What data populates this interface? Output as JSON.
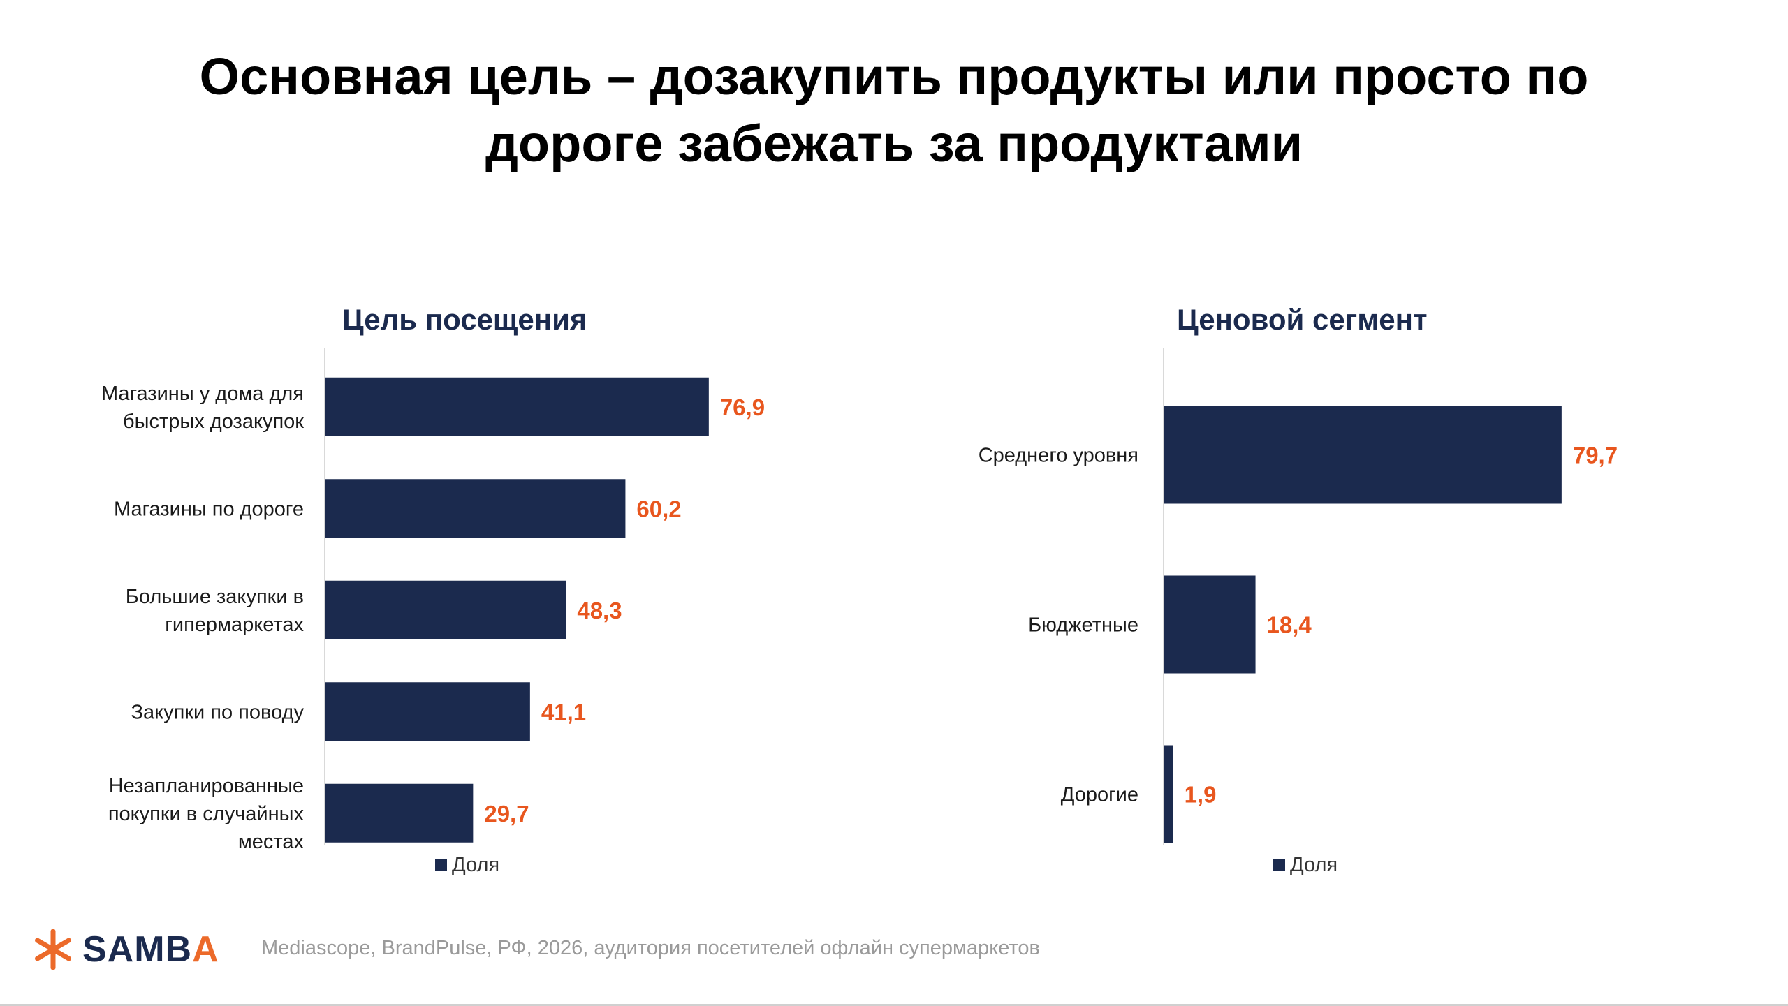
{
  "title": {
    "line1": "Основная цель – дозакупить продукты или просто по",
    "line2": "дороге забежать за продуктами"
  },
  "colors": {
    "bar": "#1b2a4e",
    "value_label": "#e8561e",
    "title": "#000000",
    "chart_title": "#1b2a4e",
    "axis": "#d9d9d9"
  },
  "chart_data": [
    {
      "type": "bar",
      "orientation": "horizontal",
      "title": "Цель посещения",
      "categories": [
        [
          "Магазины у дома для",
          "быстрых дозакупок"
        ],
        [
          "Магазины по дороге"
        ],
        [
          "Большие закупки в",
          "гипермаркетах"
        ],
        [
          "Закупки по поводу"
        ],
        [
          "Незапланированные",
          "покупки в случайных",
          "местах"
        ]
      ],
      "series": [
        {
          "name": "Доля",
          "values": [
            76.9,
            60.2,
            48.3,
            41.1,
            29.7
          ]
        }
      ],
      "value_labels": [
        "76,9",
        "60,2",
        "48,3",
        "41,1",
        "29,7"
      ],
      "xlim": [
        0,
        100
      ],
      "grid": false,
      "legend_position": "bottom"
    },
    {
      "type": "bar",
      "orientation": "horizontal",
      "title": "Ценовой сегмент",
      "categories": [
        [
          "Среднего уровня"
        ],
        [
          "Бюджетные"
        ],
        [
          "Дорогие"
        ]
      ],
      "series": [
        {
          "name": "Доля",
          "values": [
            79.7,
            18.4,
            1.9
          ]
        }
      ],
      "value_labels": [
        "79,7",
        "18,4",
        "1,9"
      ],
      "xlim": [
        0,
        100
      ],
      "grid": false,
      "legend_position": "bottom"
    }
  ],
  "footer": {
    "logo_text_main": "SAMB",
    "logo_text_accent": "A",
    "source": "Mediascope, BrandPulse, РФ, 2026, аудитория посетителей офлайн супермаркетов"
  }
}
